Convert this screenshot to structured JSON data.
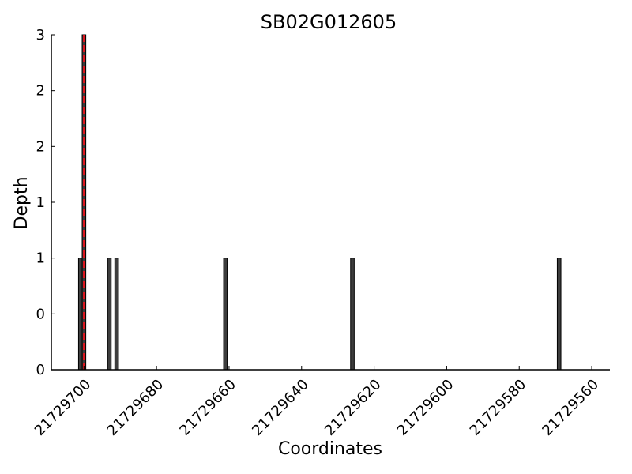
{
  "chart_data": {
    "type": "bar",
    "title": "SB02G012605",
    "xlabel": "Coordinates",
    "ylabel": "Depth",
    "x_axis_reversed": true,
    "xlim": [
      21729709,
      21729555
    ],
    "ylim": [
      0,
      3
    ],
    "x_ticks": [
      21729700,
      21729680,
      21729660,
      21729640,
      21729620,
      21729600,
      21729580,
      21729560
    ],
    "x_tick_labels": [
      "21729700",
      "21729680",
      "21729660",
      "21729640",
      "21729620",
      "21729600",
      "21729580",
      "21729560"
    ],
    "y_ticks": [
      0,
      0.5,
      1,
      1.5,
      2,
      2.5,
      3
    ],
    "y_tick_labels": [
      "0",
      "0",
      "1",
      "1",
      "2",
      "2",
      "3"
    ],
    "bar_color": "#3d3d3d",
    "marker_color": "#e0161f",
    "bars": [
      {
        "x": 21729701,
        "y": 1
      },
      {
        "x": 21729700,
        "y": 3
      },
      {
        "x": 21729693,
        "y": 1
      },
      {
        "x": 21729691,
        "y": 1
      },
      {
        "x": 21729661,
        "y": 1
      },
      {
        "x": 21729626,
        "y": 1
      },
      {
        "x": 21729569,
        "y": 1
      }
    ],
    "marker_x": 21729700,
    "grid": false
  }
}
